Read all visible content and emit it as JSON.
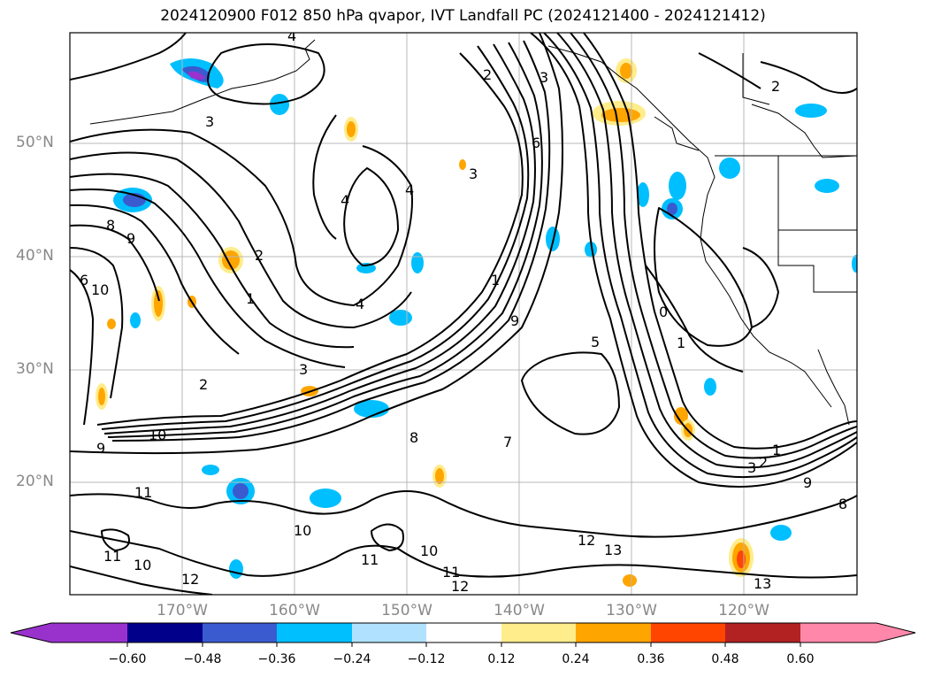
{
  "title": "2024120900 F012 850 hPa qvapor, IVT Landfall PC (2024121400 - 2024121412)",
  "map": {
    "lat_labels": [
      "50°N",
      "40°N",
      "30°N",
      "20°N"
    ],
    "lon_labels": [
      "170°W",
      "160°W",
      "150°W",
      "140°W",
      "130°W",
      "120°W"
    ],
    "contour_labels": [
      "4",
      "2",
      "3",
      "6",
      "3",
      "2",
      "3",
      "4",
      "4",
      "8",
      "9",
      "10",
      "6",
      "2",
      "1",
      "4",
      "1",
      "9",
      "3",
      "2",
      "10",
      "9",
      "11",
      "8",
      "10",
      "11",
      "12",
      "13",
      "13",
      "12",
      "1",
      "2",
      "3",
      "9",
      "8",
      "5",
      "0",
      "1",
      "10",
      "11",
      "12",
      "11",
      "10",
      "7"
    ]
  },
  "colorbar": {
    "colors": [
      "#9932cc",
      "#00008b",
      "#3a5bd0",
      "#00bfff",
      "#b0e2ff",
      "#ffffff",
      "#ffec8b",
      "#ffa500",
      "#ff4500",
      "#b22222",
      "#ff88aa"
    ],
    "ticks": [
      "−0.60",
      "−0.48",
      "−0.36",
      "−0.24",
      "−0.12",
      "0.12",
      "0.24",
      "0.36",
      "0.48",
      "0.60"
    ]
  }
}
